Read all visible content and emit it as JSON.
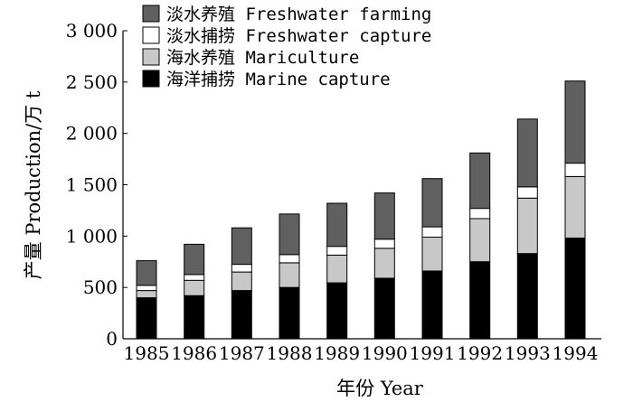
{
  "chart_data": {
    "type": "bar",
    "stacked": true,
    "categories": [
      "1985",
      "1986",
      "1987",
      "1988",
      "1989",
      "1990",
      "1991",
      "1992",
      "1993",
      "1994"
    ],
    "series": [
      {
        "name": "海洋捕捞 Marine capture",
        "color": "#000000",
        "values": [
          400,
          420,
          470,
          500,
          545,
          590,
          660,
          750,
          830,
          980
        ]
      },
      {
        "name": "海水养殖 Mariculture",
        "color": "#c8c8c8",
        "values": [
          70,
          150,
          180,
          240,
          270,
          290,
          330,
          420,
          540,
          600
        ]
      },
      {
        "name": "淡水捕捞 Freshwater capture",
        "color": "#ffffff",
        "values": [
          50,
          55,
          75,
          80,
          85,
          90,
          100,
          100,
          110,
          130
        ]
      },
      {
        "name": "淡水养殖 Freshwater farming",
        "color": "#606060",
        "values": [
          240,
          295,
          355,
          395,
          420,
          450,
          470,
          540,
          660,
          800
        ]
      }
    ],
    "legend_order": [
      3,
      2,
      1,
      0
    ],
    "xlabel": "年份 Year",
    "ylabel": "产量 Production/万 t",
    "ylim": [
      0,
      3000
    ],
    "yticks": [
      0,
      500,
      1000,
      1500,
      2000,
      2500,
      3000
    ],
    "ytick_labels": [
      "0",
      "500",
      "1 000",
      "1 500",
      "2 000",
      "2 500",
      "3 000"
    ],
    "grid": false,
    "legend_position": "top-left"
  }
}
